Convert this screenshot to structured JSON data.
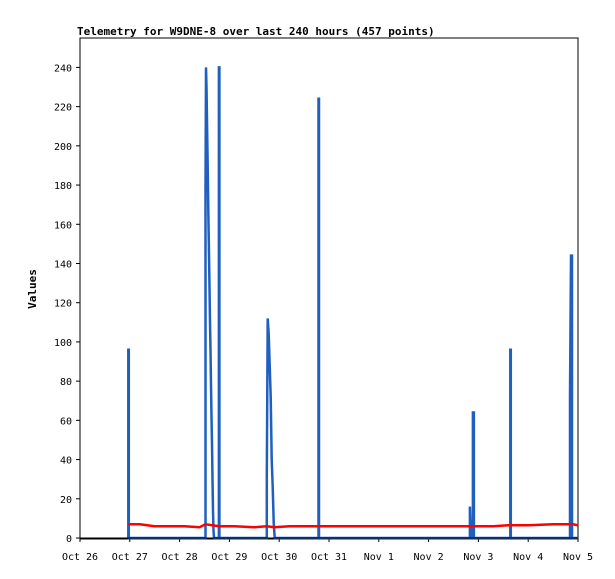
{
  "chart_data": {
    "type": "line",
    "title": "Telemetry for W9DNE-8 over last 240 hours (457 points)",
    "xlabel": "",
    "ylabel": "Values",
    "ylim": [
      0,
      255
    ],
    "xlim": [
      0,
      10
    ],
    "grid": false,
    "legend": "none",
    "y_ticks": [
      0,
      20,
      40,
      60,
      80,
      100,
      120,
      140,
      160,
      180,
      200,
      220,
      240
    ],
    "x_ticks": [
      {
        "x": 0,
        "label": "Oct 26"
      },
      {
        "x": 1,
        "label": "Oct 27"
      },
      {
        "x": 2,
        "label": "Oct 28"
      },
      {
        "x": 3,
        "label": "Oct 29"
      },
      {
        "x": 4,
        "label": "Oct 30"
      },
      {
        "x": 5,
        "label": "Oct 31"
      },
      {
        "x": 6,
        "label": "Nov 1"
      },
      {
        "x": 7,
        "label": "Nov 2"
      },
      {
        "x": 8,
        "label": "Nov 3"
      },
      {
        "x": 9,
        "label": "Nov 4"
      },
      {
        "x": 10,
        "label": "Nov 5"
      }
    ],
    "series": [
      {
        "color": "#1f5fbf",
        "style": "spikes",
        "points": [
          [
            0.97,
            0
          ],
          [
            0.97,
            96
          ],
          [
            0.98,
            96
          ],
          [
            0.98,
            0
          ],
          [
            2.52,
            0
          ],
          [
            2.52,
            176
          ],
          [
            2.53,
            240
          ],
          [
            2.54,
            230
          ],
          [
            2.55,
            213
          ],
          [
            2.56,
            196
          ],
          [
            2.57,
            178
          ],
          [
            2.58,
            160
          ],
          [
            2.59,
            145
          ],
          [
            2.6,
            128
          ],
          [
            2.61,
            110
          ],
          [
            2.62,
            96
          ],
          [
            2.63,
            78
          ],
          [
            2.64,
            62
          ],
          [
            2.65,
            48
          ],
          [
            2.66,
            30
          ],
          [
            2.67,
            14
          ],
          [
            2.68,
            4
          ],
          [
            2.69,
            0
          ],
          [
            2.79,
            0
          ],
          [
            2.79,
            240
          ],
          [
            2.8,
            240
          ],
          [
            2.8,
            0
          ],
          [
            3.75,
            0
          ],
          [
            3.75,
            32
          ],
          [
            3.77,
            112
          ],
          [
            3.79,
            104
          ],
          [
            3.81,
            88
          ],
          [
            3.83,
            72
          ],
          [
            3.85,
            40
          ],
          [
            3.87,
            26
          ],
          [
            3.89,
            8
          ],
          [
            3.91,
            0
          ],
          [
            4.79,
            0
          ],
          [
            4.79,
            224
          ],
          [
            4.8,
            224
          ],
          [
            4.8,
            0
          ],
          [
            7.83,
            0
          ],
          [
            7.83,
            16
          ],
          [
            7.85,
            0
          ],
          [
            7.89,
            0
          ],
          [
            7.89,
            64
          ],
          [
            7.91,
            64
          ],
          [
            7.91,
            0
          ],
          [
            8.64,
            0
          ],
          [
            8.64,
            96
          ],
          [
            8.65,
            96
          ],
          [
            8.65,
            0
          ],
          [
            9.84,
            0
          ],
          [
            9.84,
            72
          ],
          [
            9.86,
            144
          ],
          [
            9.88,
            144
          ],
          [
            9.88,
            0
          ],
          [
            10,
            0
          ]
        ]
      },
      {
        "color": "#ff0000",
        "style": "line",
        "points": [
          [
            0.97,
            7
          ],
          [
            1.2,
            7
          ],
          [
            1.5,
            6
          ],
          [
            1.8,
            6
          ],
          [
            2.1,
            6
          ],
          [
            2.4,
            5.5
          ],
          [
            2.52,
            7
          ],
          [
            2.8,
            6
          ],
          [
            3.1,
            6
          ],
          [
            3.5,
            5.5
          ],
          [
            3.75,
            6
          ],
          [
            3.9,
            5.5
          ],
          [
            4.2,
            6
          ],
          [
            4.8,
            6
          ],
          [
            5.5,
            6
          ],
          [
            6.0,
            6
          ],
          [
            6.5,
            6
          ],
          [
            7.0,
            6
          ],
          [
            7.5,
            6
          ],
          [
            7.9,
            6
          ],
          [
            8.3,
            6
          ],
          [
            8.6,
            6.5
          ],
          [
            9.0,
            6.5
          ],
          [
            9.5,
            7
          ],
          [
            9.9,
            7
          ],
          [
            10,
            6.5
          ]
        ]
      }
    ]
  }
}
